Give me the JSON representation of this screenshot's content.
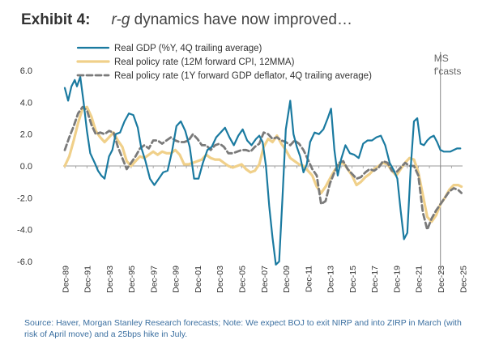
{
  "title": {
    "lead": "Exhibit 4:",
    "emph": "r-g",
    "rest": " dynamics have now improved…"
  },
  "source_text": "Source: Haver, Morgan Stanley Research forecasts; Note: We expect BOJ to exit NIRP and into ZIRP in March (with risk of April move) and a 25bps hike in July.",
  "colors": {
    "gdp": "#1a7aa0",
    "cpi": "#f0d08a",
    "deflator": "#7a7a7a",
    "axis": "#999999"
  },
  "chart_data": {
    "type": "line",
    "title": "r-g dynamics have now improved…",
    "xlabel": "",
    "ylabel": "",
    "ylim": [
      -6.0,
      6.0
    ],
    "xlim": [
      1989.75,
      2025.9
    ],
    "yticks": [
      "6.0",
      "4.0",
      "2.0",
      "0.0",
      "-2.0",
      "-4.0",
      "-6.0"
    ],
    "xticks": [
      "Dec-89",
      "Dec-91",
      "Dec-93",
      "Dec-95",
      "Dec-97",
      "Dec-99",
      "Dec-01",
      "Dec-03",
      "Dec-05",
      "Dec-07",
      "Dec-09",
      "Dec-11",
      "Dec-13",
      "Dec-15",
      "Dec-17",
      "Dec-19",
      "Dec-21",
      "Dec-23",
      "Dec-25"
    ],
    "grid": false,
    "legend_position": "top-left",
    "annotation": {
      "text": [
        "MS",
        "f'casts"
      ],
      "x": 2023.9
    },
    "series": [
      {
        "name": "Real GDP (%Y, 4Q trailing average)",
        "style": "solid",
        "x": [
          1989.9,
          1990.2,
          1990.5,
          1990.8,
          1991.0,
          1991.3,
          1991.6,
          1991.9,
          1992.2,
          1992.6,
          1992.9,
          1993.2,
          1993.5,
          1993.9,
          1994.2,
          1994.5,
          1994.9,
          1995.3,
          1995.7,
          1996.1,
          1996.5,
          1996.8,
          1997.2,
          1997.6,
          1998.0,
          1998.4,
          1998.8,
          1999.2,
          1999.6,
          2000.0,
          2000.4,
          2000.8,
          2001.2,
          2001.6,
          2002.0,
          2002.4,
          2002.8,
          2003.2,
          2003.6,
          2004.0,
          2004.4,
          2004.8,
          2005.2,
          2005.6,
          2006.0,
          2006.4,
          2006.8,
          2007.2,
          2007.5,
          2007.8,
          2008.1,
          2008.4,
          2008.7,
          2009.0,
          2009.3,
          2009.6,
          2009.9,
          2010.3,
          2010.6,
          2010.9,
          2011.2,
          2011.5,
          2011.8,
          2012.1,
          2012.5,
          2012.9,
          2013.3,
          2013.7,
          2014.0,
          2014.3,
          2014.6,
          2014.9,
          2015.3,
          2015.7,
          2016.1,
          2016.5,
          2016.9,
          2017.3,
          2017.7,
          2018.1,
          2018.5,
          2018.9,
          2019.3,
          2019.7,
          2020.0,
          2020.3,
          2020.6,
          2020.9,
          2021.2,
          2021.5,
          2021.8,
          2022.1,
          2022.4,
          2022.7,
          2023.0,
          2023.3,
          2023.6,
          2023.9,
          2024.2,
          2024.5,
          2024.8,
          2025.1,
          2025.4,
          2025.7
        ],
        "y": [
          4.9,
          4.1,
          5.0,
          5.4,
          5.0,
          5.6,
          4.0,
          2.2,
          0.8,
          0.2,
          -0.3,
          -0.6,
          -0.8,
          0.6,
          1.0,
          2.0,
          2.1,
          2.8,
          3.3,
          3.2,
          2.4,
          1.2,
          0.3,
          -0.8,
          -1.2,
          -0.8,
          -0.4,
          -0.3,
          0.9,
          2.5,
          2.8,
          2.2,
          1.2,
          -0.8,
          -0.8,
          0.2,
          1.0,
          1.2,
          1.8,
          2.1,
          2.4,
          1.8,
          1.3,
          1.9,
          2.3,
          1.6,
          1.3,
          1.7,
          1.9,
          1.5,
          0.0,
          -2.5,
          -4.5,
          -6.2,
          -6.0,
          -2.0,
          2.3,
          4.1,
          2.0,
          1.2,
          0.6,
          -0.4,
          0.1,
          1.5,
          2.1,
          2.0,
          2.3,
          3.0,
          3.6,
          1.0,
          -0.6,
          0.4,
          1.3,
          0.8,
          0.7,
          0.5,
          1.4,
          1.6,
          1.6,
          1.8,
          1.9,
          1.3,
          0.2,
          -0.3,
          -0.8,
          -2.8,
          -4.6,
          -4.2,
          -0.2,
          2.8,
          3.0,
          1.4,
          1.3,
          1.6,
          1.8,
          1.9,
          1.5,
          1.0,
          0.9,
          0.9,
          0.9,
          1.0,
          1.1,
          1.1
        ]
      },
      {
        "name": "Real policy rate (12M forward CPI, 12MMA)",
        "style": "solid",
        "x": [
          1989.9,
          1990.3,
          1990.7,
          1991.1,
          1991.5,
          1991.9,
          1992.3,
          1992.7,
          1993.1,
          1993.5,
          1993.9,
          1994.3,
          1994.7,
          1995.1,
          1995.5,
          1995.9,
          1996.3,
          1996.7,
          1997.1,
          1997.5,
          1997.9,
          1998.3,
          1998.7,
          1999.1,
          1999.5,
          1999.9,
          2000.3,
          2000.7,
          2001.1,
          2001.5,
          2001.9,
          2002.3,
          2002.7,
          2003.1,
          2003.5,
          2003.9,
          2004.3,
          2004.7,
          2005.1,
          2005.5,
          2005.9,
          2006.3,
          2006.7,
          2007.1,
          2007.5,
          2007.9,
          2008.3,
          2008.7,
          2009.1,
          2009.5,
          2009.9,
          2010.3,
          2010.7,
          2011.1,
          2011.5,
          2011.9,
          2012.3,
          2012.7,
          2013.1,
          2013.5,
          2013.9,
          2014.3,
          2014.7,
          2015.1,
          2015.5,
          2015.9,
          2016.3,
          2016.7,
          2017.1,
          2017.5,
          2017.9,
          2018.3,
          2018.7,
          2019.1,
          2019.5,
          2019.9,
          2020.3,
          2020.7,
          2021.1,
          2021.5,
          2021.9,
          2022.3,
          2022.7,
          2023.1,
          2023.5,
          2023.9,
          2024.3,
          2024.7,
          2025.1,
          2025.5,
          2025.8
        ],
        "y": [
          0.0,
          0.6,
          1.6,
          2.7,
          3.6,
          3.7,
          3.1,
          2.2,
          1.8,
          1.5,
          1.8,
          2.1,
          1.6,
          1.2,
          0.3,
          0.0,
          0.3,
          0.6,
          0.5,
          0.7,
          0.9,
          0.7,
          0.9,
          0.8,
          0.8,
          1.0,
          0.7,
          0.1,
          0.1,
          0.2,
          0.3,
          0.4,
          0.7,
          0.5,
          0.4,
          0.4,
          0.2,
          0.0,
          -0.1,
          0.0,
          0.1,
          -0.2,
          -0.4,
          -0.3,
          0.1,
          1.2,
          1.7,
          1.5,
          1.9,
          1.4,
          1.0,
          0.5,
          0.3,
          0.1,
          0.0,
          -0.3,
          -0.6,
          -1.3,
          -1.7,
          -1.3,
          -0.8,
          -0.3,
          0.1,
          0.2,
          -0.2,
          -0.6,
          -1.2,
          -1.0,
          -0.7,
          -0.5,
          -0.2,
          0.0,
          0.2,
          0.1,
          -0.3,
          -0.6,
          -0.2,
          0.2,
          0.5,
          0.4,
          -0.4,
          -1.8,
          -3.2,
          -3.5,
          -3.1,
          -2.4,
          -2.0,
          -1.5,
          -1.2,
          -1.2,
          -1.3
        ]
      },
      {
        "name": "Real policy rate (1Y forward GDP deflator, 4Q trailing average)",
        "style": "dashed",
        "x": [
          1989.9,
          1990.3,
          1990.7,
          1991.1,
          1991.5,
          1991.9,
          1992.3,
          1992.7,
          1993.1,
          1993.5,
          1993.9,
          1994.3,
          1994.7,
          1995.1,
          1995.5,
          1995.9,
          1996.3,
          1996.7,
          1997.1,
          1997.5,
          1997.9,
          1998.3,
          1998.7,
          1999.1,
          1999.5,
          1999.9,
          2000.3,
          2000.7,
          2001.1,
          2001.5,
          2001.9,
          2002.3,
          2002.7,
          2003.1,
          2003.5,
          2003.9,
          2004.3,
          2004.7,
          2005.1,
          2005.5,
          2005.9,
          2006.3,
          2006.7,
          2007.1,
          2007.5,
          2007.9,
          2008.3,
          2008.7,
          2009.1,
          2009.5,
          2009.9,
          2010.3,
          2010.7,
          2011.1,
          2011.5,
          2011.9,
          2012.3,
          2012.7,
          2013.1,
          2013.5,
          2013.9,
          2014.3,
          2014.7,
          2015.1,
          2015.5,
          2015.9,
          2016.3,
          2016.7,
          2017.1,
          2017.5,
          2017.9,
          2018.3,
          2018.7,
          2019.1,
          2019.5,
          2019.9,
          2020.3,
          2020.7,
          2021.1,
          2021.5,
          2021.9,
          2022.3,
          2022.7,
          2023.1,
          2023.5,
          2023.9,
          2024.3,
          2024.7,
          2025.1,
          2025.5,
          2025.8
        ],
        "y": [
          1.0,
          1.8,
          2.5,
          3.3,
          3.7,
          3.5,
          2.6,
          2.0,
          2.1,
          2.0,
          2.2,
          2.1,
          1.2,
          0.5,
          -0.2,
          0.2,
          0.6,
          1.1,
          1.3,
          1.1,
          1.6,
          1.6,
          1.4,
          1.6,
          1.8,
          1.6,
          1.5,
          1.5,
          1.6,
          2.0,
          1.7,
          1.3,
          1.3,
          1.0,
          1.3,
          1.4,
          1.2,
          0.8,
          0.8,
          0.9,
          1.0,
          1.0,
          0.9,
          1.2,
          1.4,
          2.1,
          2.0,
          1.7,
          1.8,
          1.6,
          1.5,
          1.3,
          1.6,
          1.4,
          1.0,
          0.4,
          -0.2,
          -0.6,
          -2.4,
          -2.2,
          -1.1,
          -0.4,
          0.2,
          0.3,
          -0.2,
          -0.5,
          -0.8,
          -0.7,
          -0.4,
          -0.2,
          -0.3,
          -0.1,
          0.3,
          0.2,
          -0.3,
          -0.4,
          -0.1,
          0.2,
          0.0,
          0.0,
          -0.6,
          -2.9,
          -4.0,
          -3.3,
          -2.8,
          -2.4,
          -2.0,
          -1.6,
          -1.4,
          -1.5,
          -1.7
        ]
      }
    ]
  }
}
